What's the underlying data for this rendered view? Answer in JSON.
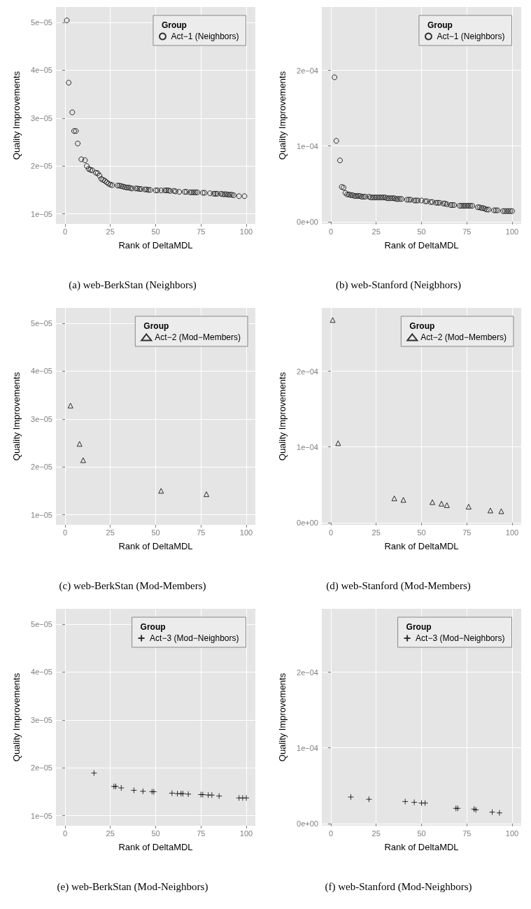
{
  "chart_data": [
    {
      "type": "scatter",
      "title": "(a) web-BerkStan (Neighbors)",
      "xlabel": "Rank of DeltaMDL",
      "ylabel": "Quality Improvements",
      "legend_title": "Group",
      "legend": "top right",
      "grid": true,
      "marker": "circle",
      "xlim": [
        -5,
        105
      ],
      "xticks": [
        0,
        25,
        50,
        75,
        100
      ],
      "ylim": [
        7.9e-06,
        5.32e-05
      ],
      "yticks": [
        {
          "value": 1e-05,
          "label": "1e−05"
        },
        {
          "value": 2e-05,
          "label": "2e−05"
        },
        {
          "value": 3e-05,
          "label": "3e−05"
        },
        {
          "value": 4e-05,
          "label": "4e−05"
        },
        {
          "value": 5e-05,
          "label": "5e−05"
        }
      ],
      "series": [
        {
          "name": "Act−1 (Neighbors)",
          "color": "#000000",
          "x": [
            1,
            2,
            4,
            5,
            6,
            7,
            9,
            11,
            12,
            13,
            14,
            15,
            17,
            18,
            19,
            20,
            21,
            22,
            23,
            24,
            25,
            26,
            29,
            30,
            31,
            32,
            33,
            34,
            35,
            36,
            37,
            39,
            40,
            41,
            42,
            44,
            45,
            46,
            47,
            50,
            51,
            53,
            55,
            56,
            57,
            58,
            60,
            61,
            63,
            66,
            67,
            69,
            70,
            71,
            72,
            73,
            76,
            77,
            80,
            82,
            83,
            84,
            86,
            87,
            88,
            89,
            90,
            91,
            92,
            93,
            96,
            99
          ],
          "values": [
            5.04e-05,
            3.74e-05,
            3.12e-05,
            2.73e-05,
            2.73e-05,
            2.47e-05,
            2.14e-05,
            2.12e-05,
            2e-05,
            1.94e-05,
            1.92e-05,
            1.91e-05,
            1.86e-05,
            1.85e-05,
            1.8e-05,
            1.73e-05,
            1.71e-05,
            1.69e-05,
            1.66e-05,
            1.63e-05,
            1.61e-05,
            1.6e-05,
            1.59e-05,
            1.59e-05,
            1.58e-05,
            1.57e-05,
            1.56e-05,
            1.55e-05,
            1.55e-05,
            1.54e-05,
            1.53e-05,
            1.53e-05,
            1.53e-05,
            1.52e-05,
            1.52e-05,
            1.51e-05,
            1.51e-05,
            1.5e-05,
            1.5e-05,
            1.49e-05,
            1.49e-05,
            1.49e-05,
            1.49e-05,
            1.49e-05,
            1.49e-05,
            1.48e-05,
            1.48e-05,
            1.47e-05,
            1.46e-05,
            1.46e-05,
            1.46e-05,
            1.45e-05,
            1.45e-05,
            1.45e-05,
            1.45e-05,
            1.45e-05,
            1.44e-05,
            1.44e-05,
            1.43e-05,
            1.42e-05,
            1.42e-05,
            1.42e-05,
            1.42e-05,
            1.41e-05,
            1.41e-05,
            1.41e-05,
            1.4e-05,
            1.4e-05,
            1.4e-05,
            1.39e-05,
            1.37e-05,
            1.37e-05
          ]
        }
      ]
    },
    {
      "type": "scatter",
      "title": "(b) web-Stanford (Neigbhors)",
      "xlabel": "Rank of DeltaMDL",
      "ylabel": "Quality Improvements",
      "legend_title": "Group",
      "legend": "top right",
      "grid": true,
      "marker": "circle",
      "xlim": [
        -5,
        105
      ],
      "xticks": [
        0,
        25,
        50,
        75,
        100
      ],
      "ylim": [
        -3e-06,
        0.000284
      ],
      "yticks": [
        {
          "value": 0,
          "label": "0e+00"
        },
        {
          "value": 0.0001,
          "label": "1e−04"
        },
        {
          "value": 0.0002,
          "label": "2e−04"
        }
      ],
      "series": [
        {
          "name": "Act−1 (Neighbors)",
          "color": "#000000",
          "x": [
            2,
            3,
            5,
            6,
            7,
            8,
            9,
            10,
            11,
            12,
            13,
            14,
            15,
            16,
            17,
            18,
            19,
            21,
            22,
            23,
            24,
            25,
            26,
            27,
            28,
            29,
            30,
            31,
            32,
            33,
            34,
            35,
            36,
            37,
            38,
            39,
            42,
            43,
            44,
            46,
            47,
            48,
            50,
            52,
            53,
            55,
            56,
            58,
            59,
            60,
            62,
            63,
            64,
            66,
            67,
            68,
            71,
            72,
            73,
            74,
            75,
            76,
            77,
            78,
            81,
            82,
            83,
            84,
            85,
            86,
            87,
            90,
            91,
            92,
            95,
            96,
            97,
            98,
            99,
            100
          ],
          "values": [
            0.000191,
            0.000107,
            8.1e-05,
            4.6e-05,
            4.5e-05,
            3.8e-05,
            3.6e-05,
            3.6e-05,
            3.5e-05,
            3.5e-05,
            3.4e-05,
            3.4e-05,
            3.4e-05,
            3.4e-05,
            3.3e-05,
            3.3e-05,
            3.3e-05,
            3.3e-05,
            3.2e-05,
            3.2e-05,
            3.2e-05,
            3.2e-05,
            3.2e-05,
            3.2e-05,
            3.2e-05,
            3.2e-05,
            3.2e-05,
            3.1e-05,
            3.1e-05,
            3.1e-05,
            3.1e-05,
            3.1e-05,
            3e-05,
            3e-05,
            3e-05,
            3e-05,
            2.9e-05,
            2.9e-05,
            2.9e-05,
            2.8e-05,
            2.8e-05,
            2.8e-05,
            2.8e-05,
            2.7e-05,
            2.7e-05,
            2.6e-05,
            2.6e-05,
            2.5e-05,
            2.5e-05,
            2.5e-05,
            2.4e-05,
            2.4e-05,
            2.3e-05,
            2.2e-05,
            2.2e-05,
            2.2e-05,
            2.1e-05,
            2.1e-05,
            2.1e-05,
            2.1e-05,
            2.1e-05,
            2.1e-05,
            2.1e-05,
            2.1e-05,
            1.9e-05,
            1.9e-05,
            1.8e-05,
            1.8e-05,
            1.7e-05,
            1.6e-05,
            1.6e-05,
            1.5e-05,
            1.5e-05,
            1.5e-05,
            1.4e-05,
            1.4e-05,
            1.4e-05,
            1.4e-05,
            1.4e-05,
            1.4e-05
          ]
        }
      ]
    },
    {
      "type": "scatter",
      "title": "(c) web-BerkStan (Mod-Members)",
      "xlabel": "Rank of DeltaMDL",
      "ylabel": "Quality Improvements",
      "legend_title": "Group",
      "legend": "top right",
      "grid": true,
      "marker": "triangle",
      "xlim": [
        -5,
        105
      ],
      "xticks": [
        0,
        25,
        50,
        75,
        100
      ],
      "ylim": [
        7.9e-06,
        5.32e-05
      ],
      "yticks": [
        {
          "value": 1e-05,
          "label": "1e−05"
        },
        {
          "value": 2e-05,
          "label": "2e−05"
        },
        {
          "value": 3e-05,
          "label": "3e−05"
        },
        {
          "value": 4e-05,
          "label": "4e−05"
        },
        {
          "value": 5e-05,
          "label": "5e−05"
        }
      ],
      "series": [
        {
          "name": "Act−2 (Mod−Members)",
          "color": "#000000",
          "x": [
            3,
            8,
            10,
            53,
            78
          ],
          "values": [
            3.28e-05,
            2.48e-05,
            2.14e-05,
            1.5e-05,
            1.43e-05
          ]
        }
      ]
    },
    {
      "type": "scatter",
      "title": "(d) web-Stanford (Mod-Members)",
      "xlabel": "Rank of DeltaMDL",
      "ylabel": "Quality Improvements",
      "legend_title": "Group",
      "legend": "top right",
      "grid": true,
      "marker": "triangle",
      "xlim": [
        -5,
        105
      ],
      "xticks": [
        0,
        25,
        50,
        75,
        100
      ],
      "ylim": [
        -3e-06,
        0.000284
      ],
      "yticks": [
        {
          "value": 0,
          "label": "0e+00"
        },
        {
          "value": 0.0001,
          "label": "1e−04"
        },
        {
          "value": 0.0002,
          "label": "2e−04"
        }
      ],
      "series": [
        {
          "name": "Act−2 (Mod−Members)",
          "color": "#000000",
          "x": [
            1,
            4,
            35,
            40,
            56,
            61,
            64,
            76,
            88,
            94
          ],
          "values": [
            0.000268,
            0.000105,
            3.2e-05,
            3e-05,
            2.7e-05,
            2.5e-05,
            2.3e-05,
            2.1e-05,
            1.6e-05,
            1.5e-05
          ]
        }
      ]
    },
    {
      "type": "scatter",
      "title": "(e) web-BerkStan (Mod-Neighbors)",
      "xlabel": "Rank of DeltaMDL",
      "ylabel": "Quality Improvements",
      "legend_title": "Group",
      "legend": "top right",
      "grid": true,
      "marker": "cross",
      "xlim": [
        -5,
        105
      ],
      "xticks": [
        0,
        25,
        50,
        75,
        100
      ],
      "ylim": [
        7.9e-06,
        5.32e-05
      ],
      "yticks": [
        {
          "value": 1e-05,
          "label": "1e−05"
        },
        {
          "value": 2e-05,
          "label": "2e−05"
        },
        {
          "value": 3e-05,
          "label": "3e−05"
        },
        {
          "value": 4e-05,
          "label": "4e−05"
        },
        {
          "value": 5e-05,
          "label": "5e−05"
        }
      ],
      "series": [
        {
          "name": "Act−3 (Mod−Neighbors)",
          "color": "#000000",
          "x": [
            16,
            27,
            28,
            31,
            38,
            43,
            48,
            49,
            59,
            62,
            64,
            65,
            68,
            75,
            76,
            79,
            81,
            85,
            96,
            98,
            100
          ],
          "values": [
            1.89e-05,
            1.61e-05,
            1.61e-05,
            1.58e-05,
            1.53e-05,
            1.51e-05,
            1.5e-05,
            1.5e-05,
            1.47e-05,
            1.46e-05,
            1.46e-05,
            1.46e-05,
            1.45e-05,
            1.44e-05,
            1.44e-05,
            1.43e-05,
            1.43e-05,
            1.41e-05,
            1.37e-05,
            1.37e-05,
            1.37e-05
          ]
        }
      ]
    },
    {
      "type": "scatter",
      "title": "(f) web-Stanford (Mod-Neighbors)",
      "xlabel": "Rank of DeltaMDL",
      "ylabel": "Quality Improvements",
      "legend_title": "Group",
      "legend": "top right",
      "grid": true,
      "marker": "cross",
      "xlim": [
        -5,
        105
      ],
      "xticks": [
        0,
        25,
        50,
        75,
        100
      ],
      "ylim": [
        -3e-06,
        0.000284
      ],
      "yticks": [
        {
          "value": 0,
          "label": "0e+00"
        },
        {
          "value": 0.0001,
          "label": "1e−04"
        },
        {
          "value": 0.0002,
          "label": "2e−04"
        }
      ],
      "series": [
        {
          "name": "Act−3 (Mod−Neighbors)",
          "color": "#000000",
          "x": [
            11,
            21,
            41,
            46,
            50,
            52,
            69,
            70,
            79,
            80,
            89,
            93
          ],
          "values": [
            3.5e-05,
            3.2e-05,
            2.9e-05,
            2.8e-05,
            2.7e-05,
            2.7e-05,
            2e-05,
            2e-05,
            1.9e-05,
            1.8e-05,
            1.5e-05,
            1.4e-05
          ]
        }
      ]
    }
  ]
}
